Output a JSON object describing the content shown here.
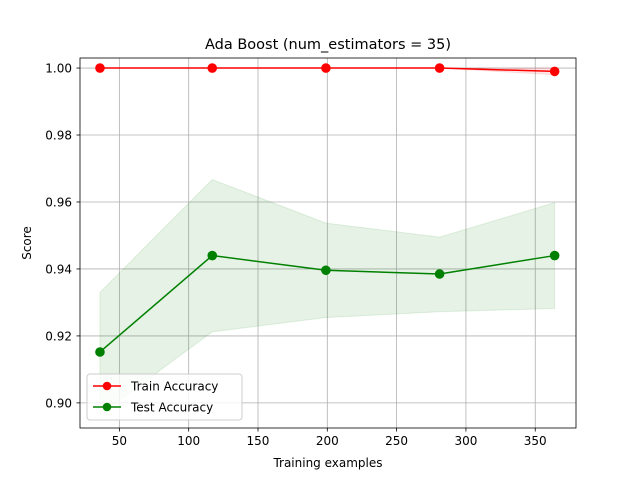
{
  "chart_data": {
    "type": "line",
    "title": "Ada Boost (num_estimators = 35)",
    "xlabel": "Training examples",
    "ylabel": "Score",
    "xlim": [
      21.6,
      379.4
    ],
    "ylim": [
      0.8925,
      1.003
    ],
    "x_ticks": [
      50,
      100,
      150,
      200,
      250,
      300,
      350
    ],
    "y_ticks": [
      0.9,
      0.92,
      0.94,
      0.96,
      0.98,
      1.0
    ],
    "grid": true,
    "legend_position": "lower-left",
    "x": [
      36,
      117,
      199,
      281,
      364
    ],
    "series": [
      {
        "name": "Train Accuracy",
        "color": "#ff0000",
        "band_color": "#ff0000",
        "values": [
          1.0,
          1.0,
          1.0,
          1.0,
          0.999
        ],
        "band_lower": [
          1.0,
          1.0,
          1.0,
          1.0,
          0.998
        ],
        "band_upper": [
          1.0,
          1.0,
          1.0,
          1.0,
          1.0
        ]
      },
      {
        "name": "Test Accuracy",
        "color": "#008000",
        "band_color": "#008000",
        "values": [
          0.9152,
          0.944,
          0.9396,
          0.9385,
          0.944
        ],
        "band_lower": [
          0.8965,
          0.9212,
          0.9255,
          0.9272,
          0.9282
        ],
        "band_upper": [
          0.933,
          0.9667,
          0.9537,
          0.9495,
          0.9598
        ]
      }
    ]
  }
}
